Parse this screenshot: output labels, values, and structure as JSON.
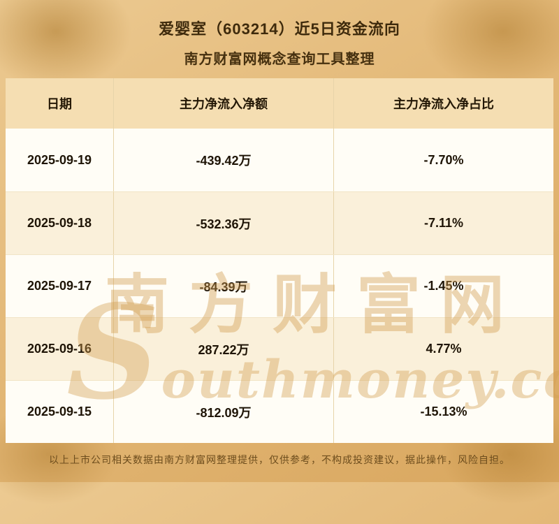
{
  "header": {
    "title_line1": "爱婴室（603214）近5日资金流向",
    "title_line2": "南方财富网概念查询工具整理"
  },
  "table": {
    "columns": [
      "日期",
      "主力净流入净额",
      "主力净流入净占比"
    ],
    "rows": [
      {
        "date": "2025-09-19",
        "net": "-439.42万",
        "ratio": "-7.70%"
      },
      {
        "date": "2025-09-18",
        "net": "-532.36万",
        "ratio": "-7.11%"
      },
      {
        "date": "2025-09-17",
        "net": "-84.39万",
        "ratio": "-1.45%"
      },
      {
        "date": "2025-09-16",
        "net": "287.22万",
        "ratio": "4.77%"
      },
      {
        "date": "2025-09-15",
        "net": "-812.09万",
        "ratio": "-15.13%"
      }
    ]
  },
  "watermark": {
    "cn": "南方财富网",
    "en": "Southmoney.com"
  },
  "footer": {
    "disclaimer": "以上上市公司相关数据由南方财富网整理提供，仅供参考，不构成投资建议，据此操作，风险自担。"
  },
  "colors": {
    "background_gold": "#e3b877",
    "header_row_bg": "#f5deb2",
    "row_odd_bg": "#fffdf6",
    "row_even_bg": "#faf0da",
    "title_text": "#3e2a0c",
    "cell_text": "#1e1406",
    "watermark_gold": "#d29e50",
    "footer_text": "#6d4d1d"
  },
  "chart_data": {
    "type": "table",
    "title": "爱婴室（603214）近5日资金流向",
    "subtitle": "南方财富网概念查询工具整理",
    "columns": [
      "日期",
      "主力净流入净额",
      "主力净流入净占比"
    ],
    "rows": [
      [
        "2025-09-19",
        "-439.42万",
        "-7.70%"
      ],
      [
        "2025-09-18",
        "-532.36万",
        "-7.11%"
      ],
      [
        "2025-09-17",
        "-84.39万",
        "-1.45%"
      ],
      [
        "2025-09-16",
        "287.22万",
        "4.77%"
      ],
      [
        "2025-09-15",
        "-812.09万",
        "-15.13%"
      ]
    ],
    "dates": [
      "2025-09-19",
      "2025-09-18",
      "2025-09-17",
      "2025-09-16",
      "2025-09-15"
    ],
    "net_inflow_wan": [
      -439.42,
      -532.36,
      -84.39,
      287.22,
      -812.09
    ],
    "net_ratio_pct": [
      -7.7,
      -7.11,
      -1.45,
      4.77,
      -15.13
    ]
  }
}
